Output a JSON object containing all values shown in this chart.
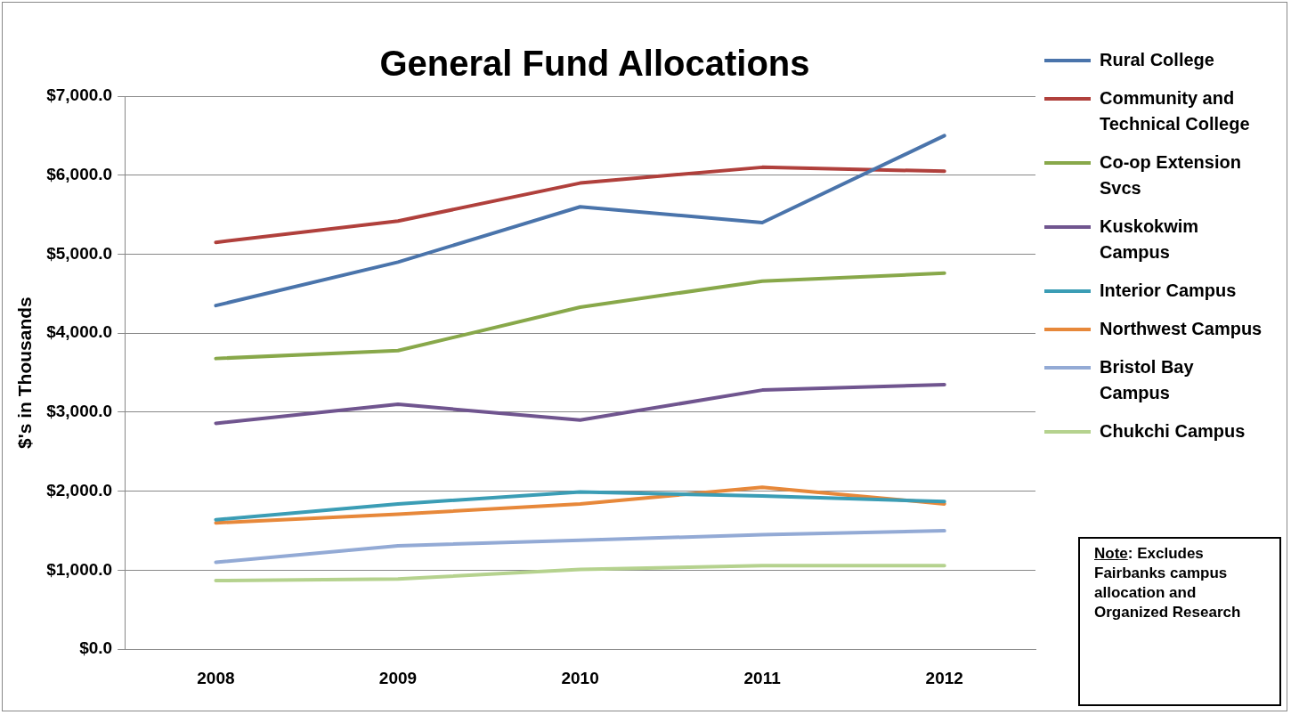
{
  "chart_data": {
    "type": "line",
    "title": "General Fund Allocations",
    "ylabel": "$'s in Thousands",
    "categories": [
      "2008",
      "2009",
      "2010",
      "2011",
      "2012"
    ],
    "series": [
      {
        "name": "Rural College",
        "color": "#4a74ab",
        "values": [
          4350,
          4900,
          5600,
          5400,
          6500
        ]
      },
      {
        "name": "Community and Technical College",
        "color": "#b0403c",
        "values": [
          5150,
          5420,
          5900,
          6100,
          6050
        ]
      },
      {
        "name": "Co-op Extension Svcs",
        "color": "#88a84a",
        "values": [
          3680,
          3780,
          4330,
          4660,
          4760
        ]
      },
      {
        "name": "Kuskokwim Campus",
        "color": "#70558f",
        "values": [
          2860,
          3100,
          2900,
          3280,
          3350
        ]
      },
      {
        "name": "Interior Campus",
        "color": "#3b9db5",
        "values": [
          1640,
          1840,
          1990,
          1940,
          1870
        ]
      },
      {
        "name": "Northwest Campus",
        "color": "#e7883a",
        "values": [
          1600,
          1710,
          1840,
          2050,
          1840
        ]
      },
      {
        "name": "Bristol Bay Campus",
        "color": "#93aad5",
        "values": [
          1100,
          1310,
          1380,
          1450,
          1500
        ]
      },
      {
        "name": "Chukchi Campus",
        "color": "#b5d28e",
        "values": [
          870,
          890,
          1010,
          1060,
          1060
        ]
      }
    ],
    "ylim": [
      0,
      7000
    ],
    "yticks": [
      {
        "value": 0,
        "label": "$0.0"
      },
      {
        "value": 1000,
        "label": "$1,000.0"
      },
      {
        "value": 2000,
        "label": "$2,000.0"
      },
      {
        "value": 3000,
        "label": "$3,000.0"
      },
      {
        "value": 4000,
        "label": "$4,000.0"
      },
      {
        "value": 5000,
        "label": "$5,000.0"
      },
      {
        "value": 6000,
        "label": "$6,000.0"
      },
      {
        "value": 7000,
        "label": "$7,000.0"
      }
    ],
    "grid": "y",
    "legend": "right",
    "marker": "none",
    "line_style": "solid",
    "annotations": [
      "Note: Excludes Fairbanks campus allocation and Organized Research"
    ]
  }
}
